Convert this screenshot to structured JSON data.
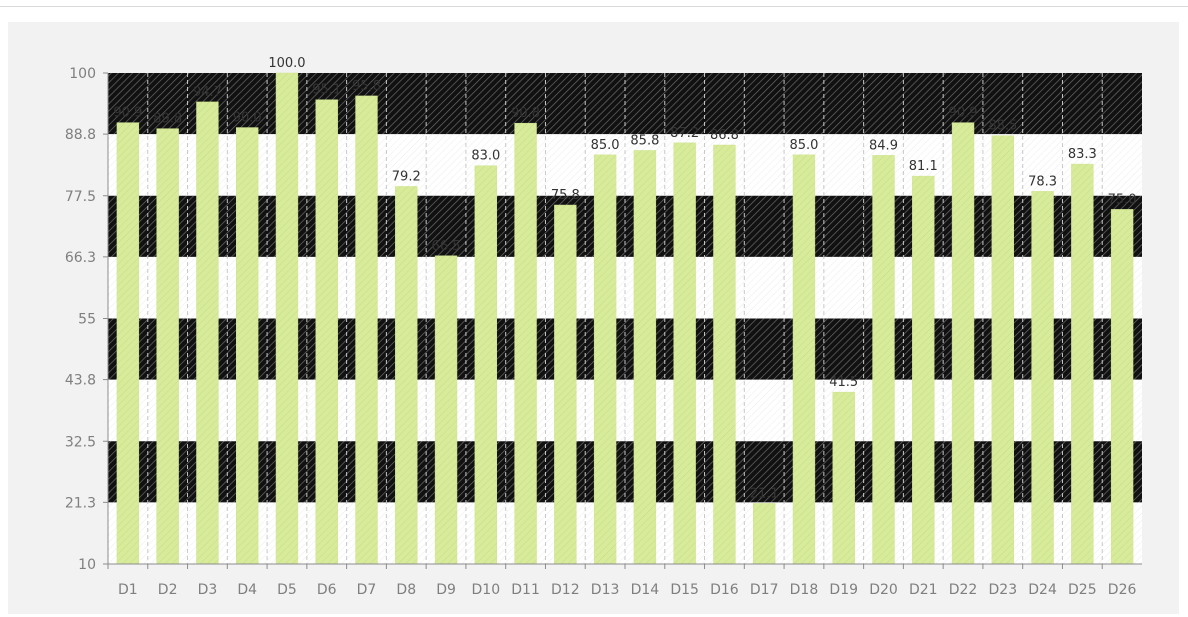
{
  "chart_data": {
    "type": "bar",
    "categories": [
      "D1",
      "D2",
      "D3",
      "D4",
      "D5",
      "D6",
      "D7",
      "D8",
      "D9",
      "D10",
      "D11",
      "D12",
      "D13",
      "D14",
      "D15",
      "D16",
      "D17",
      "D18",
      "D19",
      "D20",
      "D21",
      "D22",
      "D23",
      "D24",
      "D25",
      "D26"
    ],
    "values": [
      90.9,
      89.8,
      94.7,
      90.0,
      100.0,
      95.1,
      95.8,
      79.2,
      66.5,
      83.0,
      90.8,
      75.8,
      85.0,
      85.8,
      87.2,
      86.8,
      21.1,
      85.0,
      41.5,
      84.9,
      81.1,
      90.9,
      88.5,
      78.3,
      83.3,
      75.0
    ],
    "data_labels": [
      "90.9",
      "89.8",
      "94.7",
      "90.0",
      "100.0",
      "95.1",
      "95.8",
      "79.2",
      "66.5",
      "83.0",
      "90.8",
      "75.8",
      "85.0",
      "85.8",
      "87.2",
      "86.8",
      "21.1",
      "85.0",
      "41.5",
      "84.9",
      "81.1",
      "90.9",
      "88.5",
      "78.3",
      "83.3",
      "75.0"
    ],
    "yticks": [
      "100",
      "88.8",
      "77.5",
      "66.3",
      "55",
      "43.8",
      "32.5",
      "21.3",
      "10"
    ],
    "ylim": [
      10,
      100
    ],
    "xlabel": "",
    "ylabel": "",
    "title": "",
    "legend": "none",
    "grid": "vertical dashed",
    "bar_color": "#d7eb9a",
    "band_color": "#000000",
    "background_color": "#f2f2f2"
  }
}
